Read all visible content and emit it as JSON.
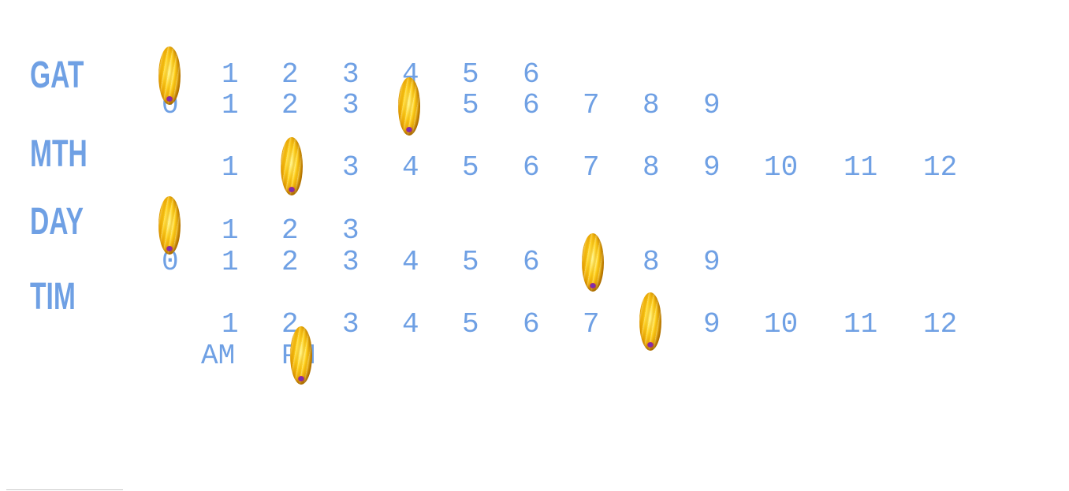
{
  "labels": {
    "gat": "GAT",
    "mth": "MTH",
    "day": "DAY",
    "tim": "TIM"
  },
  "rows": {
    "gat_tens": [
      "1",
      "2",
      "3",
      "4",
      "5",
      "6"
    ],
    "gat_ones": [
      "0",
      "1",
      "2",
      "3",
      "4",
      "5",
      "6",
      "7",
      "8",
      "9"
    ],
    "month": [
      "1",
      "2",
      "3",
      "4",
      "5",
      "6",
      "7",
      "8",
      "9",
      "10",
      "11",
      "12"
    ],
    "day_tens": [
      "1",
      "2",
      "3"
    ],
    "day_ones": [
      "0",
      "1",
      "2",
      "3",
      "4",
      "5",
      "6",
      "7",
      "8",
      "9"
    ],
    "hour": [
      "1",
      "2",
      "3",
      "4",
      "5",
      "6",
      "7",
      "8",
      "9",
      "10",
      "11",
      "12"
    ],
    "ampm": [
      "AM",
      "PM"
    ]
  },
  "selected": {
    "gat_tens": "0",
    "gat_ones": "4",
    "month": "2",
    "day_tens": "0",
    "day_ones": "7",
    "hour": "8",
    "ampm": "PM"
  },
  "colors": {
    "text": "#6fa0e4",
    "marker": "#ffd21c"
  },
  "icons": {
    "marker": "gold-bead-marker-icon"
  }
}
